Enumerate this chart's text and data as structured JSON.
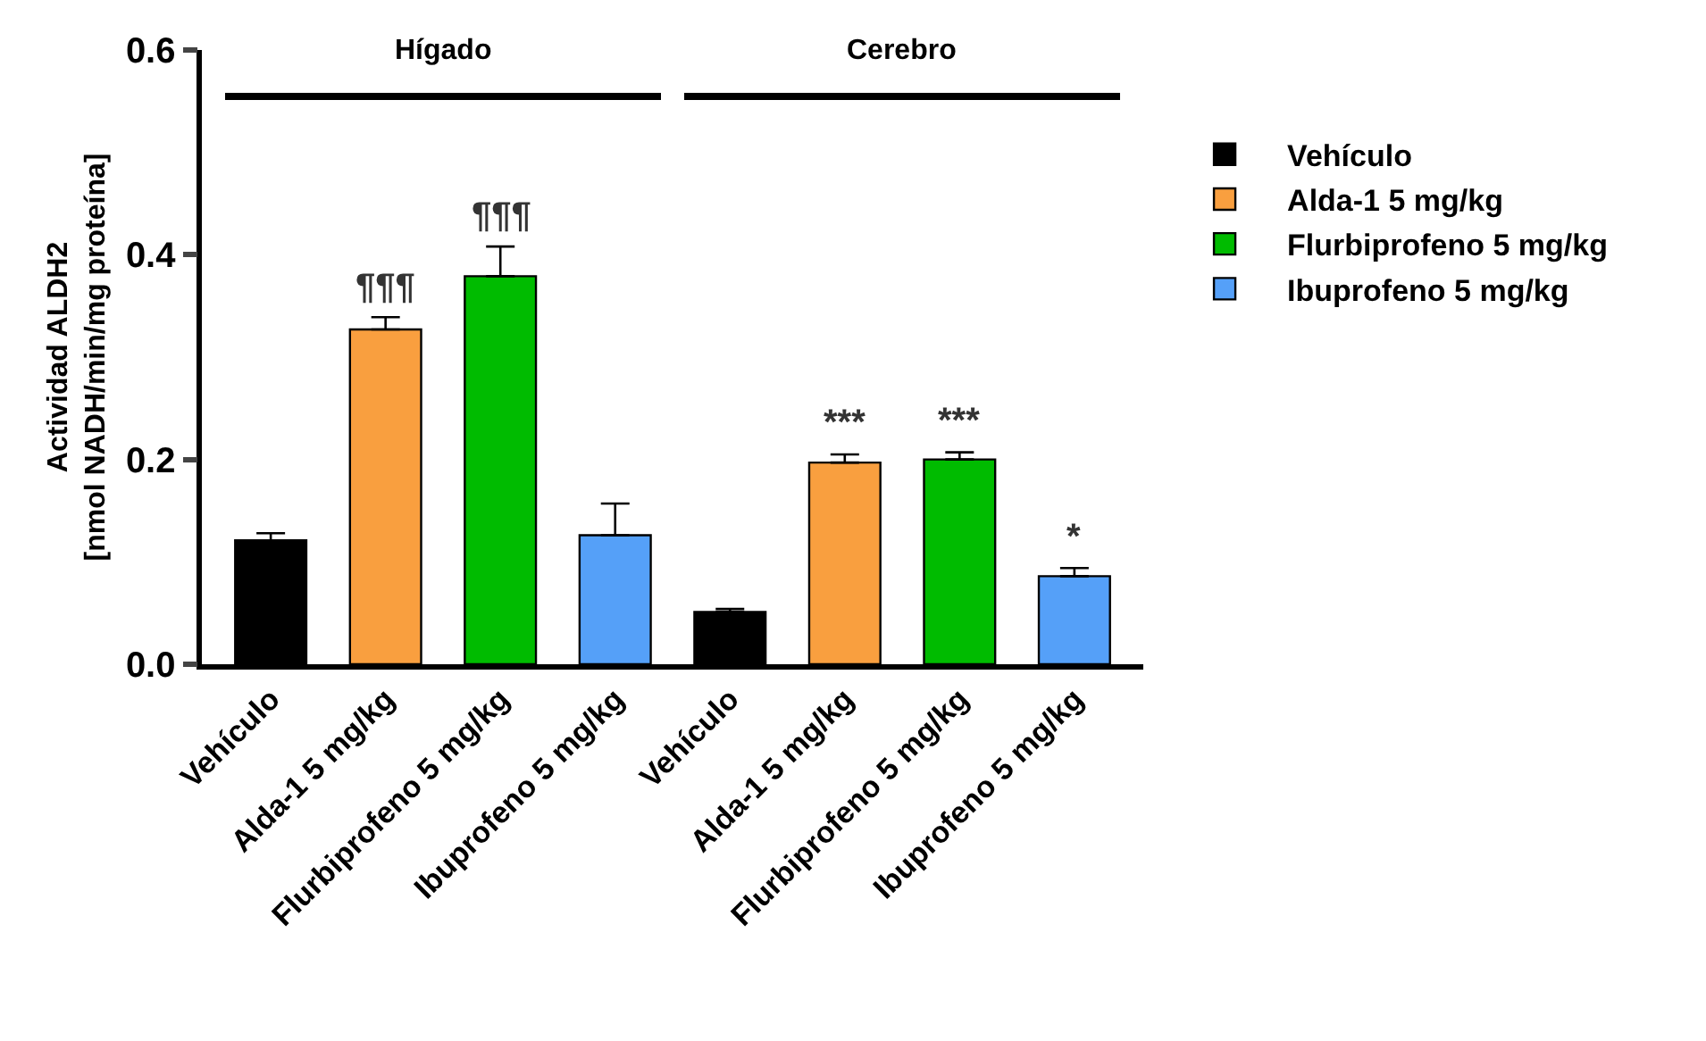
{
  "chart_data": {
    "type": "bar",
    "ylabel": "Actividad ALDH2\n[nmol NADH/min/mg proteína]",
    "categories": [
      "Vehículo",
      "Alda-1 5 mg/kg",
      "Flurbiprofeno 5 mg/kg",
      "Ibuprofeno 5 mg/kg",
      "Vehículo",
      "Alda-1 5 mg/kg",
      "Flurbiprofeno 5 mg/kg",
      "Ibuprofeno 5 mg/kg"
    ],
    "series": [
      {
        "name": "Vehículo",
        "color": "#000000",
        "values": [
          0.121,
          null,
          null,
          null,
          0.051,
          null,
          null,
          null
        ],
        "errors": [
          [
            0.121,
            0.128
          ],
          null,
          null,
          null,
          [
            0.051,
            0.054
          ],
          null,
          null,
          null
        ]
      },
      {
        "name": "Alda-1 5 mg/kg",
        "color": "#f99f3f",
        "values": [
          null,
          0.327,
          null,
          null,
          null,
          0.197,
          null,
          null
        ],
        "errors": [
          null,
          [
            0.327,
            0.339
          ],
          null,
          null,
          null,
          [
            0.197,
            0.205
          ],
          null,
          null
        ],
        "value_labels": [
          null,
          "¶¶¶",
          null,
          null,
          null,
          "***",
          null,
          null
        ]
      },
      {
        "name": "Flurbiprofeno 5 mg/kg",
        "color": "#00bb00",
        "values": [
          null,
          null,
          0.379,
          null,
          null,
          null,
          0.2,
          null
        ],
        "errors": [
          null,
          null,
          [
            0.379,
            0.408
          ],
          null,
          null,
          null,
          [
            0.2,
            0.207
          ],
          null
        ],
        "value_labels": [
          null,
          null,
          "¶¶¶",
          null,
          null,
          null,
          "***",
          null
        ]
      },
      {
        "name": "Ibuprofeno 5 mg/kg",
        "color": "#55a0f8",
        "values": [
          null,
          null,
          null,
          0.126,
          null,
          null,
          null,
          0.086
        ],
        "errors": [
          null,
          null,
          null,
          [
            0.126,
            0.157
          ],
          null,
          null,
          null,
          [
            0.086,
            0.094
          ]
        ],
        "value_labels": [
          null,
          null,
          null,
          null,
          null,
          null,
          null,
          "*"
        ]
      }
    ],
    "annotations": [
      "Hígado",
      "Cerebro"
    ],
    "ylim": [
      0,
      0.6
    ],
    "yticks": [
      {
        "value": 0,
        "label": "0.0"
      },
      {
        "value": 0.2,
        "label": "0.2"
      },
      {
        "value": 0.4,
        "label": "0.4"
      },
      {
        "value": 0.6,
        "label": "0.6"
      }
    ],
    "grid": false,
    "legend": "right"
  }
}
